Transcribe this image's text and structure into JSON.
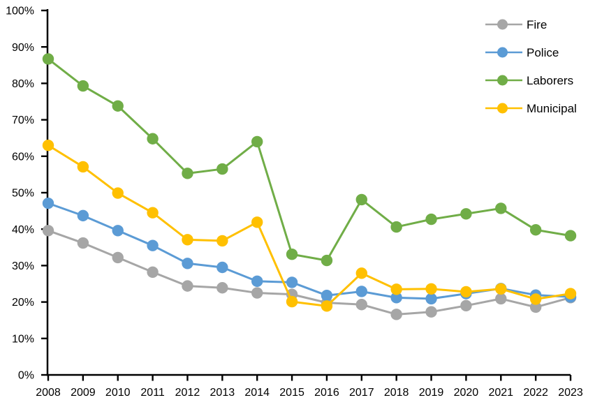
{
  "chart_data": {
    "type": "line",
    "title": "",
    "xlabel": "",
    "ylabel": "",
    "x": [
      "2008",
      "2009",
      "2010",
      "2011",
      "2012",
      "2013",
      "2014",
      "2015",
      "2016",
      "2017",
      "2018",
      "2019",
      "2020",
      "2021",
      "2022",
      "2023"
    ],
    "yaxis": {
      "min": 0,
      "max": 100,
      "step": 10,
      "tick_suffix": "%"
    },
    "grid": false,
    "legend_position": "top-right",
    "marker": "circle",
    "axis_color": "#000000",
    "background_color": "#ffffff",
    "series": [
      {
        "name": "Fire",
        "color": "#A6A6A6",
        "values": [
          39.6,
          36.2,
          32.2,
          28.2,
          24.4,
          23.9,
          22.5,
          22.1,
          19.8,
          19.3,
          16.6,
          17.3,
          19.0,
          20.9,
          18.6,
          21.2
        ]
      },
      {
        "name": "Police",
        "color": "#5B9BD5",
        "values": [
          47.1,
          43.7,
          39.6,
          35.5,
          30.6,
          29.5,
          25.7,
          25.4,
          21.8,
          22.9,
          21.2,
          20.9,
          22.3,
          23.7,
          21.9,
          21.4
        ]
      },
      {
        "name": "Laborers",
        "color": "#70AD47",
        "values": [
          86.7,
          79.3,
          73.8,
          64.8,
          55.3,
          56.5,
          64.0,
          33.1,
          31.4,
          48.1,
          40.6,
          42.7,
          44.2,
          45.7,
          39.8,
          38.2
        ]
      },
      {
        "name": "Municipal",
        "color": "#FFC000",
        "values": [
          63.0,
          57.1,
          49.9,
          44.5,
          37.1,
          36.8,
          41.9,
          20.1,
          18.9,
          27.9,
          23.5,
          23.6,
          22.8,
          23.6,
          20.8,
          22.3
        ]
      }
    ]
  }
}
